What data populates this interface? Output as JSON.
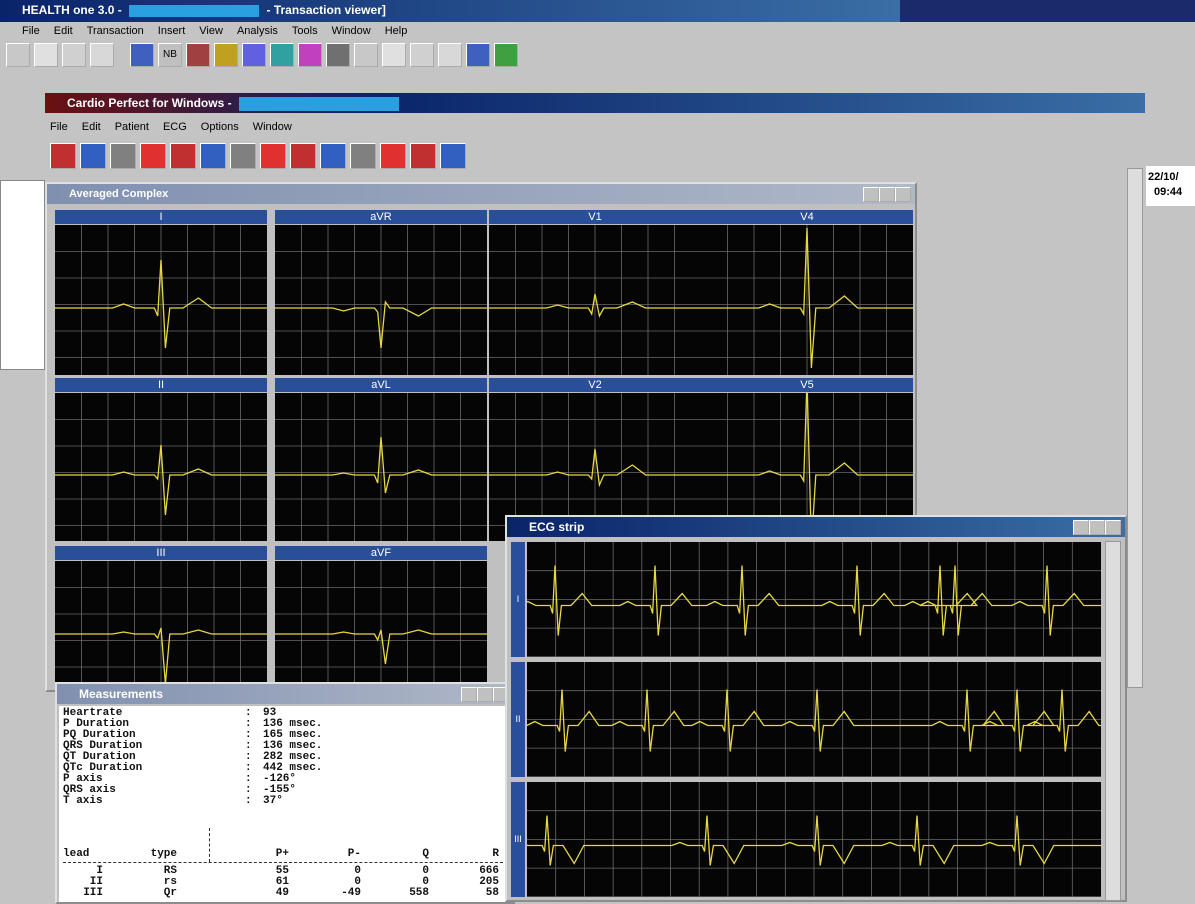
{
  "app": {
    "title": "HEALTH one 3.0 -",
    "title_suffix": "- Transaction viewer]",
    "menu": [
      "File",
      "Edit",
      "Transaction",
      "Insert",
      "View",
      "Analysis",
      "Tools",
      "Window",
      "Help"
    ],
    "toolbar_label": "NB"
  },
  "cardio": {
    "title": "Cardio Perfect for Windows -",
    "menu": [
      "File",
      "Edit",
      "Patient",
      "ECG",
      "Options",
      "Window"
    ]
  },
  "side": {
    "date": "22/10/",
    "time": "09:44"
  },
  "averaged_complex": {
    "title": "Averaged Complex",
    "leads": [
      "I",
      "aVR",
      "V1",
      "V4",
      "II",
      "aVL",
      "V2",
      "V5",
      "III",
      "aVF"
    ]
  },
  "ecg_strip": {
    "title": "ECG strip",
    "leads": [
      "I",
      "II",
      "III"
    ]
  },
  "measurements": {
    "title": "Measurements",
    "separator": ":",
    "rows": [
      [
        "Heartrate",
        "93"
      ],
      [
        "P Duration",
        "136 msec."
      ],
      [
        "PQ Duration",
        "165 msec."
      ],
      [
        "QRS Duration",
        "136 msec."
      ],
      [
        "QT Duration",
        "282 msec."
      ],
      [
        "QTc Duration",
        "442 msec."
      ],
      [
        "P axis",
        "-126°"
      ],
      [
        "QRS axis",
        "-155°"
      ],
      [
        "T axis",
        "37°"
      ]
    ],
    "table": {
      "headers": [
        "lead",
        "type",
        "P+",
        "P-",
        "Q",
        "R"
      ],
      "rows": [
        [
          "I",
          "RS",
          55,
          0,
          0,
          666
        ],
        [
          "II",
          "rs",
          61,
          0,
          0,
          205
        ],
        [
          "III",
          "Qr",
          49,
          -49,
          558,
          58
        ]
      ]
    }
  }
}
